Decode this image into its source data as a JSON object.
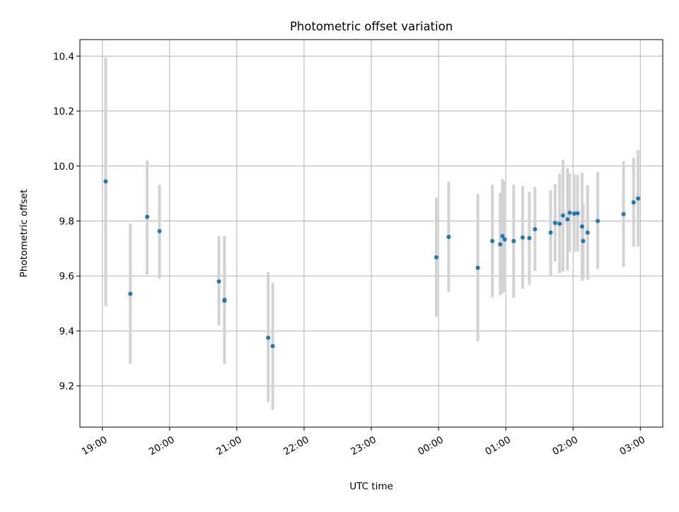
{
  "chart_data": {
    "type": "scatter",
    "title": "Photometric offset variation",
    "xlabel": "UTC time",
    "ylabel": "Photometric offset",
    "x_tick_labels": [
      "19:00",
      "20:00",
      "21:00",
      "22:00",
      "23:00",
      "00:00",
      "01:00",
      "02:00",
      "03:00"
    ],
    "y_tick_labels": [
      "9.2",
      "9.4",
      "9.6",
      "9.8",
      "10.0",
      "10.2",
      "10.4"
    ],
    "x_ticks": [
      "19:00",
      "20:00",
      "21:00",
      "22:00",
      "23:00",
      "00:00",
      "01:00",
      "02:00",
      "03:00"
    ],
    "y_ticks": [
      9.2,
      9.4,
      9.6,
      9.8,
      10.0,
      10.2,
      10.4
    ],
    "xlim": [
      "18:40",
      "03:20"
    ],
    "ylim": [
      9.05,
      10.46
    ],
    "grid": true,
    "point_color": "#1f77b4",
    "errorbar_color": "#d3d3d3",
    "points": [
      {
        "time": "19:03",
        "y": 9.944,
        "y_low": 9.49,
        "y_high": 10.395
      },
      {
        "time": "19:25",
        "y": 9.535,
        "y_low": 9.28,
        "y_high": 9.79
      },
      {
        "time": "19:40",
        "y": 9.815,
        "y_low": 9.605,
        "y_high": 10.02
      },
      {
        "time": "19:51",
        "y": 9.763,
        "y_low": 9.59,
        "y_high": 9.932
      },
      {
        "time": "20:44",
        "y": 9.58,
        "y_low": 9.42,
        "y_high": 9.745
      },
      {
        "time": "20:49",
        "y": 9.513,
        "y_low": 9.28,
        "y_high": 9.745
      },
      {
        "time": "20:49",
        "y": 9.51,
        "y_low": 9.28,
        "y_high": 9.745
      },
      {
        "time": "21:28",
        "y": 9.375,
        "y_low": 9.14,
        "y_high": 9.614
      },
      {
        "time": "21:32",
        "y": 9.345,
        "y_low": 9.112,
        "y_high": 9.575
      },
      {
        "time": "23:58",
        "y": 9.668,
        "y_low": 9.452,
        "y_high": 9.885
      },
      {
        "time": "00:09",
        "y": 9.742,
        "y_low": 9.542,
        "y_high": 9.943
      },
      {
        "time": "00:35",
        "y": 9.63,
        "y_low": 9.362,
        "y_high": 9.898
      },
      {
        "time": "00:48",
        "y": 9.727,
        "y_low": 9.522,
        "y_high": 9.932
      },
      {
        "time": "00:55",
        "y": 9.715,
        "y_low": 9.53,
        "y_high": 9.903
      },
      {
        "time": "00:57",
        "y": 9.745,
        "y_low": 9.537,
        "y_high": 9.952
      },
      {
        "time": "00:59",
        "y": 9.733,
        "y_low": 9.54,
        "y_high": 9.945
      },
      {
        "time": "01:07",
        "y": 9.727,
        "y_low": 9.52,
        "y_high": 9.932
      },
      {
        "time": "01:15",
        "y": 9.74,
        "y_low": 9.553,
        "y_high": 9.927
      },
      {
        "time": "01:21",
        "y": 9.738,
        "y_low": 9.568,
        "y_high": 9.906
      },
      {
        "time": "01:26",
        "y": 9.77,
        "y_low": 9.618,
        "y_high": 9.924
      },
      {
        "time": "01:40",
        "y": 9.758,
        "y_low": 9.6,
        "y_high": 9.912
      },
      {
        "time": "01:44",
        "y": 9.793,
        "y_low": 9.652,
        "y_high": 9.934
      },
      {
        "time": "01:48",
        "y": 9.79,
        "y_low": 9.61,
        "y_high": 9.972
      },
      {
        "time": "01:51",
        "y": 9.82,
        "y_low": 9.616,
        "y_high": 10.022
      },
      {
        "time": "01:55",
        "y": 9.806,
        "y_low": 9.62,
        "y_high": 9.992
      },
      {
        "time": "01:57",
        "y": 9.83,
        "y_low": 9.688,
        "y_high": 9.975
      },
      {
        "time": "02:01",
        "y": 9.827,
        "y_low": 9.688,
        "y_high": 9.97
      },
      {
        "time": "02:04",
        "y": 9.828,
        "y_low": 9.688,
        "y_high": 9.968
      },
      {
        "time": "02:08",
        "y": 9.78,
        "y_low": 9.583,
        "y_high": 9.975
      },
      {
        "time": "02:09",
        "y": 9.727,
        "y_low": 9.59,
        "y_high": 9.863
      },
      {
        "time": "02:13",
        "y": 9.758,
        "y_low": 9.586,
        "y_high": 9.93
      },
      {
        "time": "02:22",
        "y": 9.8,
        "y_low": 9.625,
        "y_high": 9.978
      },
      {
        "time": "02:45",
        "y": 9.825,
        "y_low": 9.632,
        "y_high": 10.017
      },
      {
        "time": "02:54",
        "y": 9.868,
        "y_low": 9.707,
        "y_high": 10.03
      },
      {
        "time": "02:58",
        "y": 9.882,
        "y_low": 9.707,
        "y_high": 10.058
      }
    ]
  }
}
